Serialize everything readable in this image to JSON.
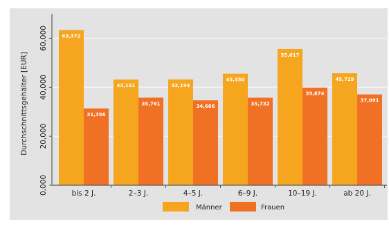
{
  "chart_data": {
    "type": "bar",
    "title": "",
    "xlabel": "",
    "ylabel": "Durchschnittsgehälter [EUR]",
    "ylim": [
      0,
      70000
    ],
    "yticks": [
      0,
      20000,
      40000,
      60000
    ],
    "ytick_labels": [
      "0,000",
      "20,000",
      "40,000",
      "60,000"
    ],
    "grid": true,
    "legend_position": "bottom",
    "categories": [
      "bis 2 J.",
      "2–3 J.",
      "4–5 J.",
      "6–9 J.",
      "10–19 J.",
      "ab 20 J."
    ],
    "series": [
      {
        "name": "Männer",
        "color": "#f5a51e",
        "values": [
          63372,
          43151,
          43194,
          45550,
          55617,
          45729
        ],
        "labels": [
          "63,372",
          "43,151",
          "43,194",
          "45,550",
          "55,617",
          "45,729"
        ]
      },
      {
        "name": "Frauen",
        "color": "#f07124",
        "values": [
          31356,
          35761,
          34666,
          35732,
          39874,
          37091
        ],
        "labels": [
          "31,356",
          "35,761",
          "34,666",
          "35,732",
          "39,874",
          "37,091"
        ]
      }
    ],
    "colors": {
      "plot_background": "#e3e3e3",
      "gridline": "#f4f4f4",
      "axis": "#5a5a5a",
      "text": "#222222",
      "data_label": "#ffffff"
    }
  }
}
